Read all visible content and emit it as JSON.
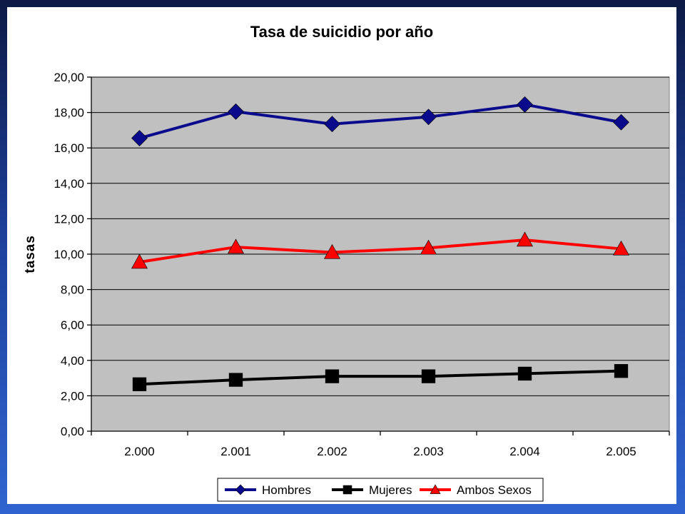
{
  "chart_data": {
    "type": "line",
    "title": "Tasa de suicidio por año",
    "xlabel": "",
    "ylabel": "tasas",
    "categories": [
      "2.000",
      "2.001",
      "2.002",
      "2.003",
      "2.004",
      "2.005"
    ],
    "ylim": [
      0,
      20
    ],
    "yticks": [
      "0,00",
      "2,00",
      "4,00",
      "6,00",
      "8,00",
      "10,00",
      "12,00",
      "14,00",
      "16,00",
      "18,00",
      "20,00"
    ],
    "grid": true,
    "legend": "bottom",
    "plot_background": "#c0c0c0",
    "series": [
      {
        "name": "Hombres",
        "marker": "diamond",
        "color": "#0a0a8c",
        "values": [
          16.55,
          18.05,
          17.35,
          17.75,
          18.45,
          17.45
        ]
      },
      {
        "name": "Mujeres",
        "marker": "square",
        "color": "#000000",
        "values": [
          2.65,
          2.9,
          3.1,
          3.1,
          3.25,
          3.4
        ]
      },
      {
        "name": "Ambos Sexos",
        "marker": "triangle",
        "color": "#ff0000",
        "values": [
          9.55,
          10.4,
          10.1,
          10.35,
          10.8,
          10.3
        ]
      }
    ]
  }
}
